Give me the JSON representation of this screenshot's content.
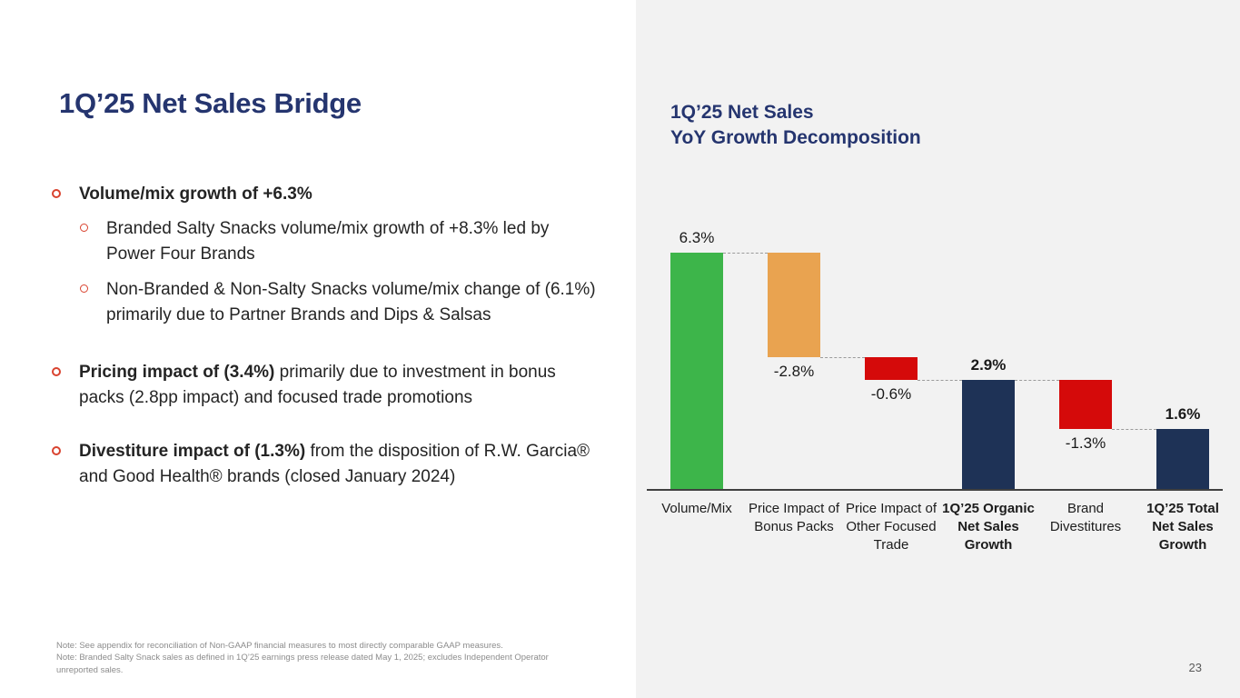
{
  "theme": {
    "navy_heading": "#25356f",
    "bar_navy": "#1e3256",
    "bar_green": "#3db54a",
    "bar_orange": "#e9a350",
    "bar_red": "#d50a0a",
    "bullet_marker_red": "#d9432f",
    "panel_bg": "#f2f2f2",
    "body_text": "#242424",
    "note_gray": "#8c8c8c"
  },
  "slide": {
    "title": "1Q’25 Net Sales Bridge",
    "bullets": [
      {
        "level": 1,
        "bold": "Volume/mix growth of +6.3%",
        "rest": ""
      },
      {
        "level": 2,
        "bold": "",
        "rest": "Branded Salty Snacks volume/mix growth of +8.3% led by Power Four Brands"
      },
      {
        "level": 2,
        "bold": "",
        "rest": "Non-Branded & Non-Salty Snacks volume/mix change of (6.1%) primarily due to Partner Brands and Dips & Salsas"
      },
      {
        "level": 1,
        "bold": "Pricing impact of (3.4%)",
        "rest": " primarily due to investment in bonus packs (2.8pp impact) and focused trade promotions"
      },
      {
        "level": 1,
        "bold": "Divestiture impact of (1.3%)",
        "rest": " from the disposition of R.W. Garcia® and Good Health® brands (closed January 2024)"
      }
    ],
    "notes": [
      "Note: See appendix for reconciliation of Non-GAAP financial measures to most directly comparable GAAP measures.",
      "Note: Branded Salty Snack sales as defined in 1Q’25 earnings press release dated May 1, 2025; excludes Independent Operator unreported sales."
    ],
    "page_number": "23"
  },
  "chart": {
    "title_line1": "1Q’25 Net Sales",
    "title_line2": "YoY Growth Decomposition"
  },
  "chart_data": {
    "type": "bar",
    "subtype": "waterfall",
    "title": "1Q’25 Net Sales YoY Growth Decomposition",
    "unit": "%",
    "ylim": [
      0,
      6.3
    ],
    "gridlines": false,
    "connector_style": "dashed",
    "categories": [
      "Volume/Mix",
      "Price Impact of Bonus Packs",
      "Price Impact of Other Focused Trade",
      "1Q’25 Organic Net Sales Growth",
      "Brand Divestitures",
      "1Q’25 Total Net Sales Growth"
    ],
    "values": [
      6.3,
      -2.8,
      -0.6,
      2.9,
      -1.3,
      1.6
    ],
    "bar_types": [
      "flow",
      "flow",
      "flow",
      "subtotal",
      "flow",
      "total"
    ],
    "data_labels": [
      "6.3%",
      "-2.8%",
      "-0.6%",
      "2.9%",
      "-1.3%",
      "1.6%"
    ],
    "label_positions": [
      "above",
      "below",
      "below",
      "above",
      "below",
      "above"
    ],
    "label_bold": [
      false,
      false,
      false,
      true,
      false,
      true
    ],
    "category_bold": [
      false,
      false,
      false,
      true,
      false,
      true
    ],
    "bar_colors": [
      "#3db54a",
      "#e9a350",
      "#d50a0a",
      "#1e3256",
      "#d50a0a",
      "#1e3256"
    ]
  }
}
